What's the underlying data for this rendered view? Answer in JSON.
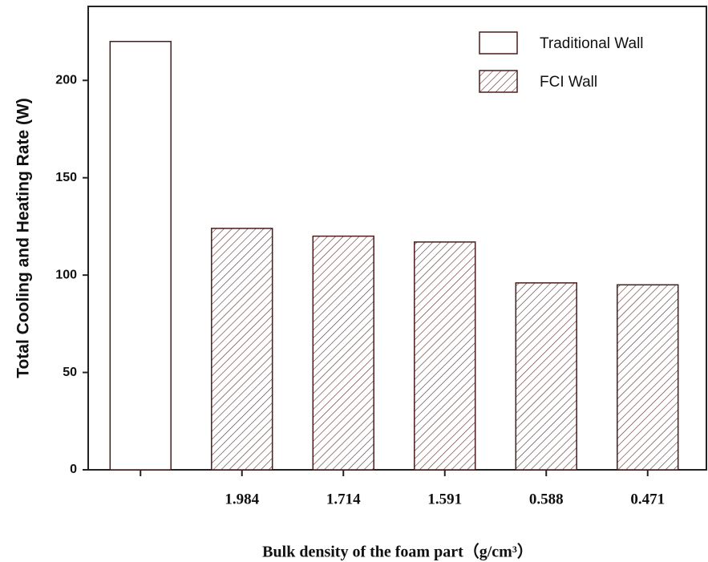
{
  "chart_data": {
    "type": "bar",
    "y_label": "Total Cooling and Heating Rate (W)",
    "x_label": "Bulk density of the foam part（g/cm³）",
    "categories": [
      null,
      "1.984",
      "1.714",
      "1.591",
      "0.588",
      "0.471"
    ],
    "series": [
      {
        "name": "Traditional Wall",
        "color": "#ffffff",
        "edge": "#4a1c1c",
        "hatch": false,
        "values": [
          220,
          null,
          null,
          null,
          null,
          null
        ]
      },
      {
        "name": "FCI Wall",
        "color": "#ffffff",
        "edge": "#4a1c1c",
        "hatch": true,
        "values": [
          null,
          124,
          120,
          117,
          96,
          95
        ]
      }
    ],
    "ylim": [
      0,
      238
    ],
    "yticks": [
      0,
      50,
      100,
      150,
      200
    ],
    "legend": "upper right",
    "grid": false
  }
}
